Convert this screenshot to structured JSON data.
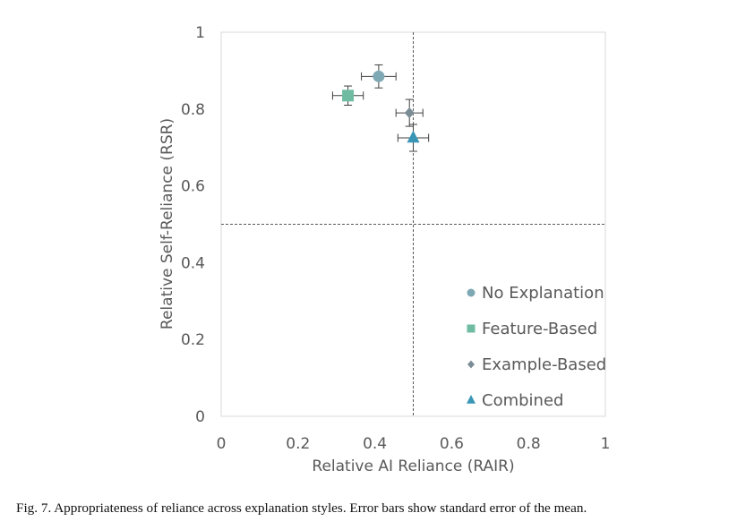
{
  "caption": "Fig. 7.  Appropriateness of reliance across explanation styles. Error bars show standard error of the mean.",
  "chart_data": {
    "type": "scatter",
    "xlabel": "Relative AI Reliance (RAIR)",
    "ylabel": "Relative Self-Reliance (RSR)",
    "xlim": [
      0,
      1
    ],
    "ylim": [
      0,
      1
    ],
    "x_ticks": [
      "0",
      "0.2",
      "0.4",
      "0.6",
      "0.8",
      "1"
    ],
    "y_ticks": [
      "0",
      "0.2",
      "0.4",
      "0.6",
      "0.8",
      "1"
    ],
    "grid": false,
    "reference_lines": {
      "x": 0.5,
      "y": 0.5
    },
    "legend_position": "bottom-right",
    "series": [
      {
        "name": "No Explanation",
        "marker": "circle",
        "color": "#7fa8b5",
        "x": 0.41,
        "y": 0.885,
        "x_err": 0.045,
        "y_err": 0.03
      },
      {
        "name": "Feature-Based",
        "marker": "square",
        "color": "#6fbca3",
        "x": 0.33,
        "y": 0.835,
        "x_err": 0.04,
        "y_err": 0.025
      },
      {
        "name": "Example-Based",
        "marker": "diamond",
        "color": "#7a8c94",
        "x": 0.49,
        "y": 0.79,
        "x_err": 0.035,
        "y_err": 0.035
      },
      {
        "name": "Combined",
        "marker": "triangle",
        "color": "#3a96b5",
        "x": 0.5,
        "y": 0.725,
        "x_err": 0.04,
        "y_err": 0.035
      }
    ]
  }
}
